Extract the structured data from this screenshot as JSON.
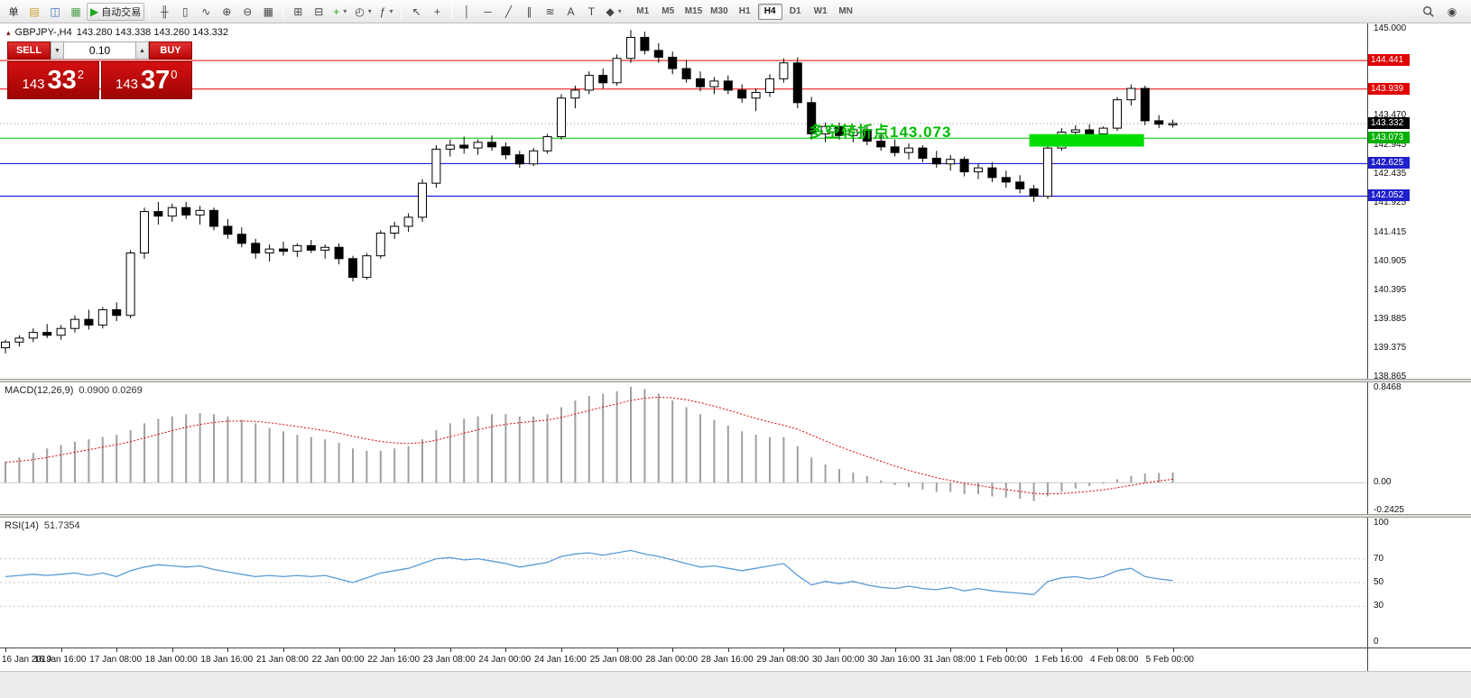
{
  "toolbar": {
    "items": [
      {
        "name": "new-order-button",
        "text": "单"
      },
      {
        "name": "chart-window-icon",
        "glyph": "▤",
        "color": "#c8a02a"
      },
      {
        "name": "profiles-icon",
        "glyph": "◫",
        "color": "#3a6fb8"
      },
      {
        "name": "data-window-icon",
        "glyph": "▦",
        "color": "#4aa04a"
      },
      {
        "name": "autotrading-button",
        "glyph": "▶",
        "glyph_color": "#1fa81f",
        "text": "自动交易"
      },
      {
        "sep": true
      },
      {
        "name": "ohlc-bars-icon",
        "glyph": "╫"
      },
      {
        "name": "candlestick-chart-icon",
        "glyph": "▯"
      },
      {
        "name": "line-chart-icon",
        "glyph": "∿"
      },
      {
        "name": "zoom-in-icon",
        "glyph": "⊕"
      },
      {
        "name": "zoom-out-icon",
        "glyph": "⊖"
      },
      {
        "name": "grid-icon",
        "glyph": "▦"
      },
      {
        "sep": true
      },
      {
        "name": "tile-windows-icon",
        "glyph": "⊞"
      },
      {
        "name": "arrange-windows-icon",
        "glyph": "⊟"
      },
      {
        "name": "new-chart-button",
        "glyph": "+",
        "glyph_color": "#1fa81f",
        "dropdown": true
      },
      {
        "name": "periods-button",
        "glyph": "◴",
        "dropdown": true
      },
      {
        "name": "indicators-button",
        "glyph": "ƒ",
        "dropdown": true
      },
      {
        "sep": true
      },
      {
        "name": "cursor-icon",
        "glyph": "↖"
      },
      {
        "name": "crosshair-icon",
        "glyph": "+"
      },
      {
        "sep": true
      },
      {
        "name": "vertical-line-icon",
        "glyph": "│"
      },
      {
        "name": "horizontal-line-icon",
        "glyph": "─"
      },
      {
        "name": "trendline-icon",
        "glyph": "╱"
      },
      {
        "name": "equidistant-channel-icon",
        "glyph": "∥"
      },
      {
        "name": "fibonacci-icon",
        "glyph": "≋"
      },
      {
        "name": "text-tool-icon",
        "glyph": "A"
      },
      {
        "name": "text-label-icon",
        "glyph": "T"
      },
      {
        "name": "arrows-button",
        "glyph": "◆",
        "dropdown": true
      }
    ],
    "timeframes": {
      "items": [
        "M1",
        "M5",
        "M15",
        "M30",
        "H1",
        "H4",
        "D1",
        "W1",
        "MN"
      ],
      "active": "H4"
    },
    "right_items": [
      {
        "name": "search-icon",
        "icon": "magnifier"
      },
      {
        "name": "community-icon",
        "glyph": "◉"
      }
    ]
  },
  "symbol_info": {
    "title": "GBPJPY-,H4",
    "ohlc": "143.280 143.338 143.260 143.332"
  },
  "trade_panel": {
    "sell_label": "SELL",
    "buy_label": "BUY",
    "volume": "0.10",
    "sell_price": {
      "int": "143",
      "dec": "33",
      "sup": "2"
    },
    "buy_price": {
      "int": "143",
      "dec": "37",
      "sup": "0"
    }
  },
  "chart_data": {
    "type": "candlestick+indicators",
    "symbol": "GBPJPY-",
    "timeframe": "H4",
    "price_axis": {
      "max": 145.0,
      "min": 138.865,
      "ticks": [
        "145.000",
        "143.470",
        "142.945",
        "142.435",
        "141.925",
        "141.415",
        "140.905",
        "140.395",
        "139.885",
        "139.375",
        "138.865"
      ]
    },
    "hlines": [
      {
        "price": 144.441,
        "color": "#f00000",
        "badge": "144.441",
        "badge_bg": "#e00000"
      },
      {
        "price": 143.939,
        "color": "#f00000",
        "badge": "143.939",
        "badge_bg": "#e00000"
      },
      {
        "price": 143.073,
        "color": "#00c000",
        "badge": "143.073",
        "badge_bg": "#00b000"
      },
      {
        "price": 142.625,
        "color": "#0000e0",
        "badge": "142.625",
        "badge_bg": "#2020cc"
      },
      {
        "price": 142.052,
        "color": "#0000e0",
        "badge": "142.052",
        "badge_bg": "#2020cc"
      }
    ],
    "current_price": {
      "price": 143.332,
      "label": "143.332",
      "bg": "#000000"
    },
    "rectangle": {
      "bar_start": 74,
      "bar_end": 81.6,
      "price_top": 143.145,
      "price_bottom": 142.925,
      "color": "#00dd00"
    },
    "annotation": {
      "text": "多空转折点143.073",
      "color": "#00bb00"
    },
    "ohlc": [
      [
        139.38,
        139.52,
        139.28,
        139.48
      ],
      [
        139.48,
        139.6,
        139.4,
        139.55
      ],
      [
        139.55,
        139.72,
        139.48,
        139.65
      ],
      [
        139.65,
        139.8,
        139.55,
        139.6
      ],
      [
        139.6,
        139.78,
        139.52,
        139.72
      ],
      [
        139.72,
        139.95,
        139.65,
        139.88
      ],
      [
        139.88,
        140.05,
        139.7,
        139.78
      ],
      [
        139.78,
        140.1,
        139.72,
        140.05
      ],
      [
        140.05,
        140.18,
        139.85,
        139.95
      ],
      [
        139.95,
        141.1,
        139.9,
        141.05
      ],
      [
        141.05,
        141.85,
        140.95,
        141.78
      ],
      [
        141.78,
        141.95,
        141.55,
        141.7
      ],
      [
        141.7,
        141.92,
        141.6,
        141.85
      ],
      [
        141.85,
        141.95,
        141.65,
        141.72
      ],
      [
        141.72,
        141.88,
        141.55,
        141.8
      ],
      [
        141.8,
        141.85,
        141.45,
        141.52
      ],
      [
        141.52,
        141.65,
        141.3,
        141.38
      ],
      [
        141.38,
        141.5,
        141.15,
        141.22
      ],
      [
        141.22,
        141.3,
        140.95,
        141.05
      ],
      [
        141.05,
        141.2,
        140.9,
        141.12
      ],
      [
        141.12,
        141.25,
        141.0,
        141.08
      ],
      [
        141.08,
        141.22,
        140.98,
        141.18
      ],
      [
        141.18,
        141.28,
        141.05,
        141.1
      ],
      [
        141.1,
        141.2,
        140.95,
        141.15
      ],
      [
        141.15,
        141.22,
        140.85,
        140.95
      ],
      [
        140.95,
        141.0,
        140.55,
        140.62
      ],
      [
        140.62,
        141.05,
        140.58,
        141.0
      ],
      [
        141.0,
        141.45,
        140.95,
        141.4
      ],
      [
        141.4,
        141.6,
        141.3,
        141.52
      ],
      [
        141.52,
        141.75,
        141.42,
        141.68
      ],
      [
        141.68,
        142.35,
        141.6,
        142.28
      ],
      [
        142.28,
        142.95,
        142.2,
        142.88
      ],
      [
        142.88,
        143.05,
        142.75,
        142.95
      ],
      [
        142.95,
        143.1,
        142.8,
        142.9
      ],
      [
        142.9,
        143.05,
        142.78,
        143.0
      ],
      [
        143.0,
        143.12,
        142.85,
        142.92
      ],
      [
        142.92,
        143.0,
        142.7,
        142.78
      ],
      [
        142.78,
        142.85,
        142.55,
        142.62
      ],
      [
        142.62,
        142.9,
        142.58,
        142.85
      ],
      [
        142.85,
        143.15,
        142.8,
        143.1
      ],
      [
        143.1,
        143.85,
        143.05,
        143.78
      ],
      [
        143.78,
        144.0,
        143.6,
        143.92
      ],
      [
        143.92,
        144.25,
        143.85,
        144.18
      ],
      [
        144.18,
        144.3,
        143.95,
        144.05
      ],
      [
        144.05,
        144.55,
        144.0,
        144.48
      ],
      [
        144.48,
        144.98,
        144.4,
        144.85
      ],
      [
        144.85,
        144.95,
        144.55,
        144.62
      ],
      [
        144.62,
        144.75,
        144.4,
        144.5
      ],
      [
        144.5,
        144.6,
        144.2,
        144.3
      ],
      [
        144.3,
        144.45,
        144.05,
        144.12
      ],
      [
        144.12,
        144.25,
        143.9,
        143.98
      ],
      [
        143.98,
        144.15,
        143.85,
        144.08
      ],
      [
        144.08,
        144.18,
        143.85,
        143.92
      ],
      [
        143.92,
        144.02,
        143.7,
        143.78
      ],
      [
        143.78,
        143.95,
        143.55,
        143.88
      ],
      [
        143.88,
        144.2,
        143.8,
        144.12
      ],
      [
        144.12,
        144.48,
        144.05,
        144.4
      ],
      [
        144.4,
        144.5,
        143.6,
        143.7
      ],
      [
        143.7,
        143.8,
        143.05,
        143.15
      ],
      [
        143.15,
        143.35,
        143.0,
        143.28
      ],
      [
        143.28,
        143.35,
        143.05,
        143.12
      ],
      [
        143.12,
        143.3,
        143.0,
        143.22
      ],
      [
        143.22,
        143.28,
        142.95,
        143.02
      ],
      [
        143.02,
        143.15,
        142.85,
        142.92
      ],
      [
        142.92,
        143.05,
        142.75,
        142.82
      ],
      [
        142.82,
        142.98,
        142.7,
        142.9
      ],
      [
        142.9,
        142.95,
        142.65,
        142.72
      ],
      [
        142.72,
        142.85,
        142.55,
        142.62
      ],
      [
        142.62,
        142.78,
        142.5,
        142.7
      ],
      [
        142.7,
        142.75,
        142.4,
        142.48
      ],
      [
        142.48,
        142.62,
        142.35,
        142.55
      ],
      [
        142.55,
        142.65,
        142.3,
        142.38
      ],
      [
        142.38,
        142.5,
        142.2,
        142.3
      ],
      [
        142.3,
        142.42,
        142.1,
        142.18
      ],
      [
        142.18,
        142.25,
        141.95,
        142.05
      ],
      [
        142.05,
        142.95,
        142.0,
        142.9
      ],
      [
        142.9,
        143.25,
        142.85,
        143.18
      ],
      [
        143.18,
        143.3,
        143.05,
        143.22
      ],
      [
        143.22,
        143.32,
        143.08,
        143.15
      ],
      [
        143.15,
        143.28,
        143.05,
        143.25
      ],
      [
        143.25,
        143.8,
        143.2,
        143.75
      ],
      [
        143.75,
        144.02,
        143.65,
        143.95
      ],
      [
        143.95,
        144.0,
        143.3,
        143.38
      ],
      [
        143.38,
        143.48,
        143.25,
        143.32
      ],
      [
        143.32,
        143.4,
        143.26,
        143.332
      ]
    ],
    "time_labels": [
      "16 Jan 2019",
      "16 Jan 16:00",
      "17 Jan 08:00",
      "18 Jan 00:00",
      "18 Jan 16:00",
      "21 Jan 08:00",
      "22 Jan 00:00",
      "22 Jan 16:00",
      "23 Jan 08:00",
      "24 Jan 00:00",
      "24 Jan 16:00",
      "25 Jan 08:00",
      "28 Jan 00:00",
      "28 Jan 16:00",
      "29 Jan 08:00",
      "30 Jan 00:00",
      "30 Jan 16:00",
      "31 Jan 08:00",
      "1 Feb 00:00",
      "1 Feb 16:00",
      "4 Feb 08:00",
      "5 Feb 00:00"
    ],
    "label_every_n_bars": 4,
    "macd": {
      "name": "MACD(12,26,9)",
      "values_text": "0.0900 0.0269",
      "axis_max": 0.8468,
      "axis_min": -0.2425,
      "axis_ticks": [
        {
          "label": "0.8468",
          "value": 0.8468
        },
        {
          "label": "0.00",
          "value": 0
        },
        {
          "label": "-0.2425",
          "value": -0.2425
        }
      ],
      "values": [
        0.18,
        0.22,
        0.26,
        0.3,
        0.33,
        0.36,
        0.38,
        0.4,
        0.42,
        0.46,
        0.52,
        0.56,
        0.58,
        0.6,
        0.61,
        0.6,
        0.58,
        0.55,
        0.52,
        0.48,
        0.45,
        0.42,
        0.4,
        0.38,
        0.35,
        0.3,
        0.28,
        0.28,
        0.3,
        0.32,
        0.38,
        0.46,
        0.52,
        0.56,
        0.58,
        0.6,
        0.6,
        0.58,
        0.58,
        0.6,
        0.66,
        0.72,
        0.76,
        0.78,
        0.8,
        0.84,
        0.82,
        0.78,
        0.72,
        0.66,
        0.6,
        0.55,
        0.5,
        0.45,
        0.42,
        0.4,
        0.4,
        0.32,
        0.22,
        0.16,
        0.12,
        0.09,
        0.06,
        0.02,
        -0.02,
        -0.04,
        -0.06,
        -0.08,
        -0.08,
        -0.1,
        -0.1,
        -0.12,
        -0.13,
        -0.14,
        -0.16,
        -0.12,
        -0.08,
        -0.05,
        -0.03,
        -0.01,
        0.03,
        0.06,
        0.08,
        0.085,
        0.09
      ]
    },
    "rsi": {
      "name": "RSI(14)",
      "value_text": "51.7354",
      "axis_ticks": [
        {
          "label": "100",
          "value": 100
        },
        {
          "label": "70",
          "value": 70
        },
        {
          "label": "50",
          "value": 50
        },
        {
          "label": "30",
          "value": 30
        },
        {
          "label": "0",
          "value": 0
        }
      ],
      "levels": [
        70,
        50,
        30
      ],
      "values": [
        55,
        56,
        57,
        56,
        57,
        58,
        56,
        58,
        55,
        60,
        63,
        65,
        64,
        63,
        64,
        61,
        59,
        57,
        55,
        56,
        55,
        56,
        55,
        56,
        53,
        50,
        54,
        58,
        60,
        62,
        66,
        70,
        71,
        69,
        70,
        68,
        66,
        63,
        65,
        67,
        72,
        74,
        75,
        73,
        75,
        77,
        74,
        72,
        69,
        66,
        63,
        64,
        62,
        60,
        62,
        64,
        66,
        56,
        48,
        51,
        49,
        51,
        48,
        46,
        45,
        47,
        45,
        44,
        46,
        43,
        45,
        43,
        42,
        41,
        40,
        51,
        54,
        55,
        53,
        55,
        60,
        62,
        55,
        53,
        51.7
      ]
    }
  }
}
